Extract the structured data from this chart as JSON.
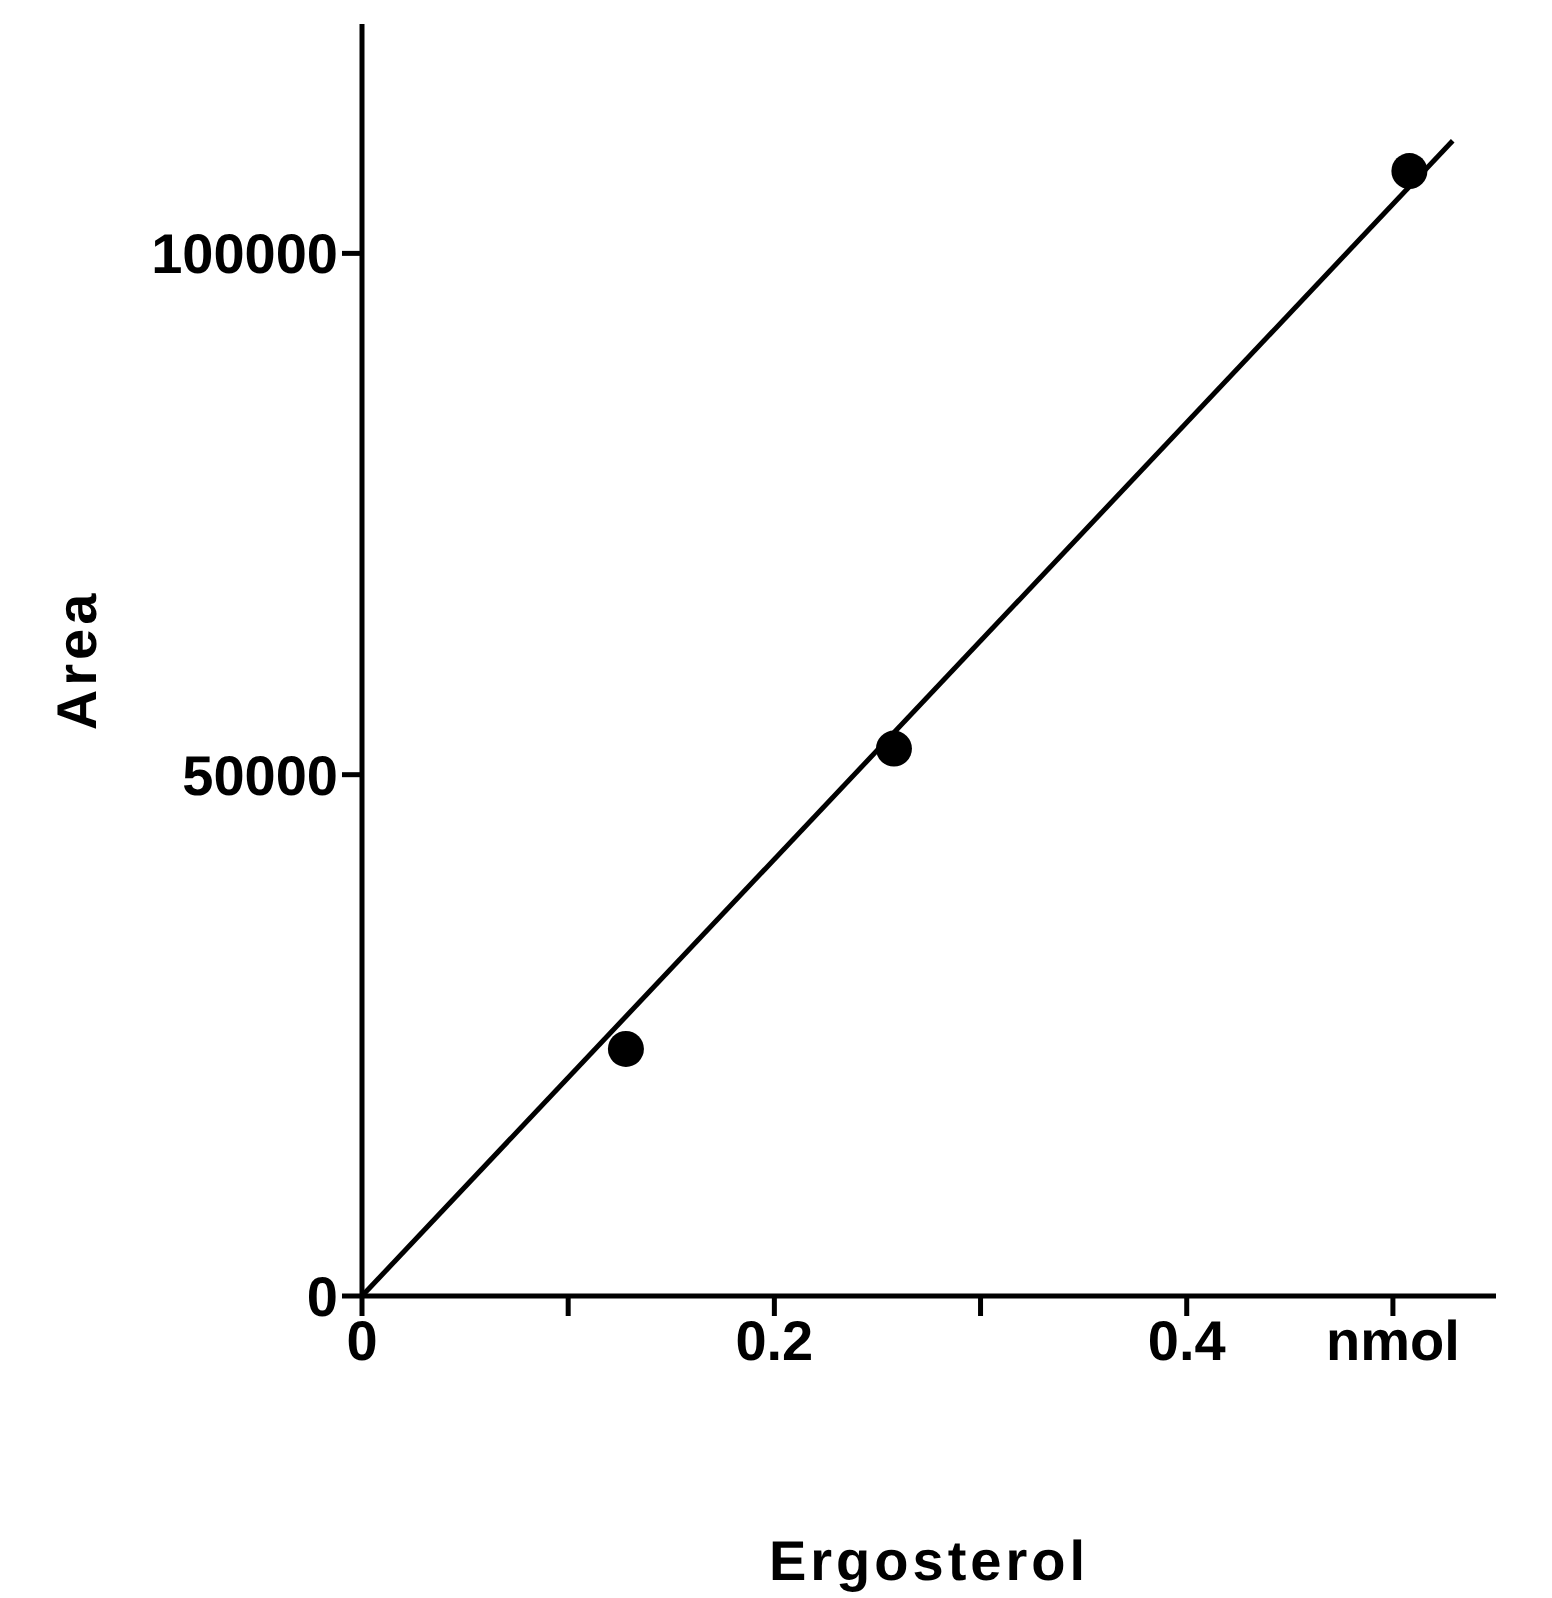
{
  "chart_data": {
    "type": "scatter",
    "xlabel": "Ergosterol",
    "ylabel": "Area",
    "xlim": [
      0,
      0.55
    ],
    "ylim": [
      0,
      122000
    ],
    "xticks": [
      0,
      {
        "value": 0.1,
        "label": null
      },
      0.2,
      {
        "value": 0.3,
        "label": null
      },
      0.4,
      {
        "value": 0.5,
        "label": "nmol"
      }
    ],
    "yticks": [
      0,
      50000,
      100000
    ],
    "marker": "circle",
    "series": [
      {
        "color": "#000000",
        "x": [
          0.128,
          0.258,
          0.508
        ],
        "values": [
          23700,
          52500,
          107900
        ]
      },
      {
        "type": "line",
        "color": "#000000",
        "marker": "none",
        "line_style": "solid",
        "x": [
          0,
          0.529
        ],
        "values": [
          0,
          110800
        ]
      }
    ]
  }
}
